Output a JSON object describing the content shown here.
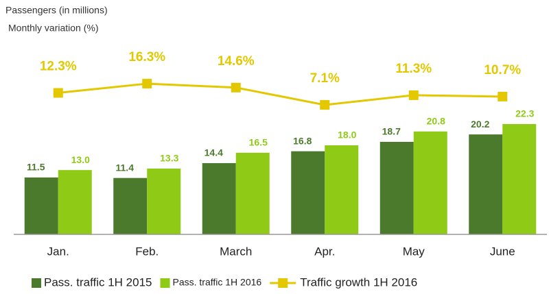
{
  "chart_data": {
    "type": "bar",
    "subtitles": [
      "Passengers (in millions)",
      "Monthly variation (%)"
    ],
    "categories": [
      "Jan.",
      "Feb.",
      "March",
      "Apr.",
      "May",
      "June"
    ],
    "series": [
      {
        "name": "Pass. traffic 1H 2015",
        "color": "#4b7a2c",
        "values": [
          11.5,
          11.4,
          14.4,
          16.8,
          18.7,
          20.2
        ]
      },
      {
        "name": "Pass. traffic 1H 2016",
        "color": "#8fcb16",
        "values": [
          13.0,
          13.3,
          16.5,
          18.0,
          20.8,
          22.3
        ],
        "value_labels": [
          "13.0",
          "13.3",
          "16.5",
          "18.0",
          "20.8",
          "22.3"
        ]
      },
      {
        "name": "Traffic growth 1H 2016",
        "color": "#e3c800",
        "type": "line",
        "axis": "y2",
        "values": [
          12.3,
          16.3,
          14.6,
          7.1,
          11.3,
          10.7
        ],
        "value_labels": [
          "12.3%",
          "16.3%",
          "14.6%",
          "7.1%",
          "11.3%",
          "10.7%"
        ]
      }
    ],
    "ylim": [
      0,
      30
    ],
    "y2lim": [
      0,
      20
    ],
    "grid": false,
    "legend": "bottom"
  }
}
